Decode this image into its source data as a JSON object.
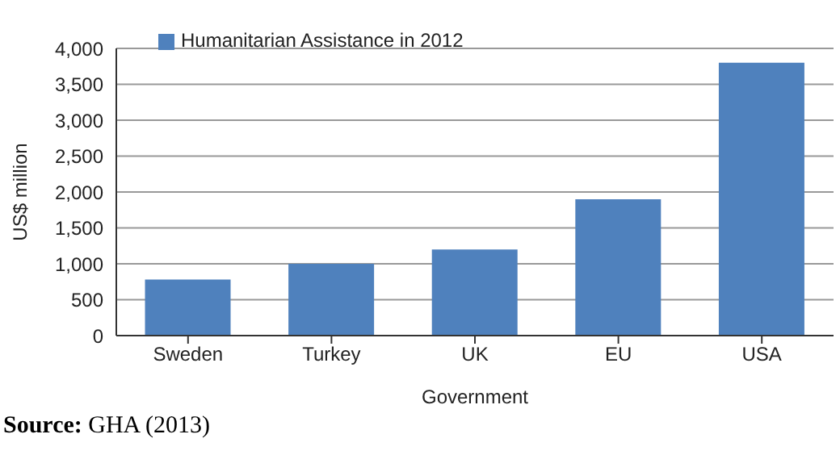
{
  "chart_data": {
    "type": "bar",
    "categories": [
      "Sweden",
      "Turkey",
      "UK",
      "EU",
      "USA"
    ],
    "series": [
      {
        "name": "Humanitarian Assistance in 2012",
        "color": "#4f81bd",
        "values": [
          780,
          1000,
          1200,
          1900,
          3800
        ]
      }
    ],
    "xlabel": "Government",
    "ylabel": "US$ million",
    "ylim": [
      0,
      4000
    ],
    "yticks": [
      0,
      500,
      {
        "value": 1000,
        "label": "1,000"
      },
      {
        "value": 1500,
        "label": "1,500"
      },
      {
        "value": 2000,
        "label": "2,000"
      },
      {
        "value": 2500,
        "label": "2,500"
      },
      {
        "value": 3000,
        "label": "3,000"
      },
      {
        "value": 3500,
        "label": "3,500"
      },
      {
        "value": 4000,
        "label": "4,000"
      }
    ],
    "grid": "y",
    "legend": "top left",
    "annotations": [
      "Source: GHA (2013)"
    ]
  }
}
